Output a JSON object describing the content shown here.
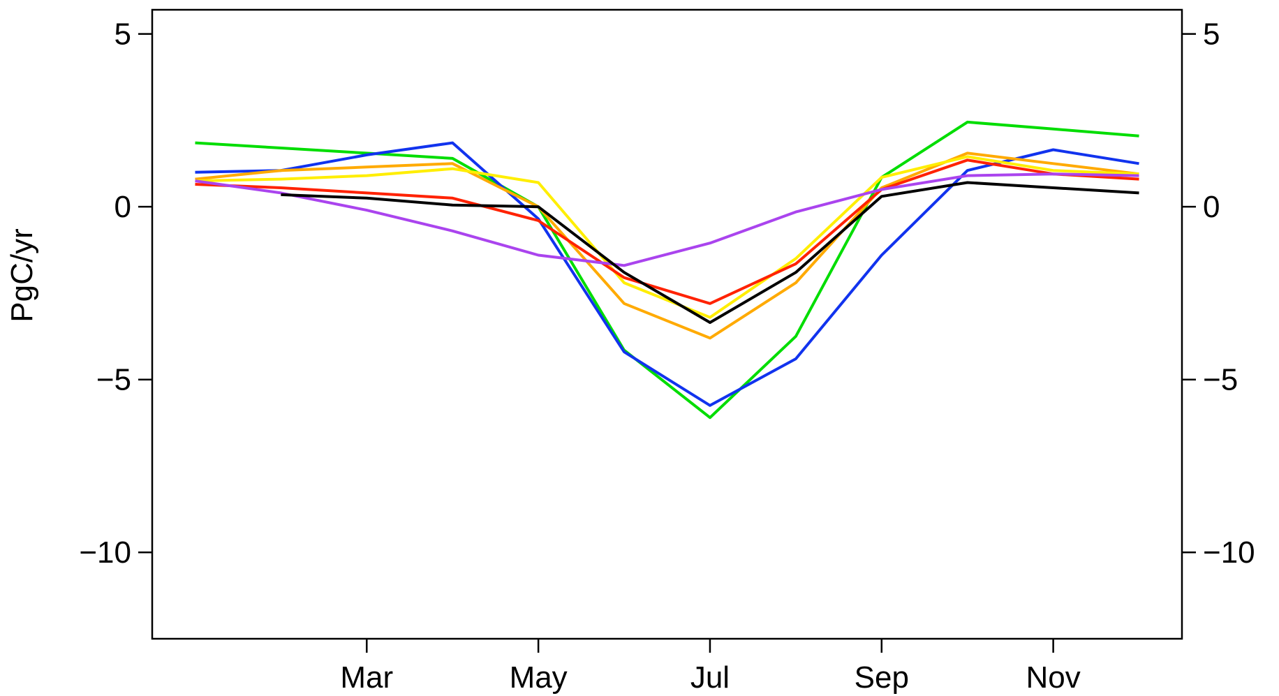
{
  "chart_data": {
    "type": "line",
    "title": "",
    "ylabel": "PgC/yr",
    "xlabel": "",
    "ylim": [
      -12.5,
      5.7
    ],
    "xlim": [
      0.5,
      12.5
    ],
    "grid": false,
    "y_ticks": [
      5,
      0,
      -5,
      -10
    ],
    "y_tick_labels": [
      "5",
      "0",
      "−5",
      "−10"
    ],
    "x_ticks": [
      3,
      5,
      7,
      9,
      11
    ],
    "x_tick_labels": [
      "Mar",
      "May",
      "Jul",
      "Sep",
      "Nov"
    ],
    "x": [
      1,
      2,
      3,
      4,
      5,
      6,
      7,
      8,
      9,
      10,
      11,
      12
    ],
    "series": [
      {
        "color": "#00dd00",
        "values": [
          1.85,
          1.7,
          1.55,
          1.4,
          0.0,
          -4.15,
          -6.1,
          -3.75,
          0.85,
          2.45,
          2.25,
          2.05
        ]
      },
      {
        "color": "#1133ee",
        "values": [
          1.0,
          1.05,
          1.5,
          1.85,
          -0.35,
          -4.2,
          -5.75,
          -4.4,
          -1.4,
          1.05,
          1.65,
          1.25
        ]
      },
      {
        "color": "#ffaa00",
        "values": [
          0.8,
          1.05,
          1.15,
          1.25,
          0.0,
          -2.8,
          -3.8,
          -2.2,
          0.55,
          1.55,
          1.25,
          0.95
        ]
      },
      {
        "color": "#ffee00",
        "values": [
          0.75,
          0.8,
          0.9,
          1.1,
          0.7,
          -2.2,
          -3.2,
          -1.5,
          0.85,
          1.45,
          1.05,
          0.95
        ]
      },
      {
        "color": "#ff2200",
        "values": [
          0.65,
          0.55,
          0.4,
          0.25,
          -0.4,
          -2.05,
          -2.8,
          -1.65,
          0.5,
          1.35,
          0.95,
          0.8
        ]
      },
      {
        "color": "#aa44ee",
        "values": [
          0.75,
          0.4,
          -0.1,
          -0.7,
          -1.4,
          -1.7,
          -1.05,
          -0.15,
          0.5,
          0.9,
          0.95,
          0.9
        ]
      },
      {
        "color": "#000000",
        "values": [
          null,
          0.35,
          0.25,
          0.05,
          0.0,
          -1.9,
          -3.35,
          -1.9,
          0.3,
          0.7,
          0.55,
          0.4
        ]
      }
    ]
  }
}
